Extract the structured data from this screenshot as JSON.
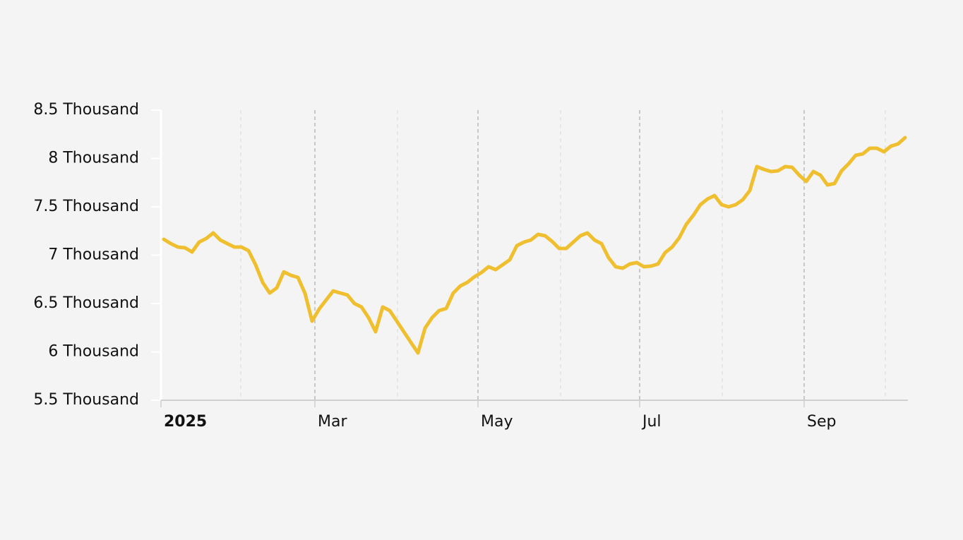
{
  "chart_data": {
    "type": "line",
    "values": [
      7164,
      7120,
      7084,
      7077,
      7033,
      7135,
      7172,
      7230,
      7157,
      7120,
      7084,
      7084,
      7047,
      6901,
      6719,
      6609,
      6661,
      6828,
      6792,
      6770,
      6606,
      6318,
      6442,
      6537,
      6631,
      6609,
      6588,
      6500,
      6464,
      6354,
      6208,
      6464,
      6427,
      6318,
      6208,
      6098,
      5989,
      6245,
      6354,
      6427,
      6449,
      6609,
      6682,
      6719,
      6777,
      6821,
      6880,
      6850,
      6901,
      6952,
      7098,
      7135,
      7157,
      7215,
      7201,
      7142,
      7069,
      7069,
      7135,
      7201,
      7230,
      7157,
      7120,
      6974,
      6880,
      6865,
      6909,
      6923,
      6880,
      6887,
      6909,
      7026,
      7084,
      7179,
      7318,
      7412,
      7522,
      7580,
      7617,
      7522,
      7500,
      7522,
      7573,
      7668,
      7916,
      7887,
      7865,
      7872,
      7916,
      7909,
      7828,
      7763,
      7865,
      7828,
      7726,
      7741,
      7872,
      7945,
      8033,
      8047,
      8106,
      8106,
      8069,
      8128,
      8150,
      8215
    ],
    "color": "#efbf2f",
    "xlim": [
      -0.4,
      105.4
    ],
    "xticks": [
      {
        "value": -0.4,
        "label": "2025"
      },
      {
        "value": 21.4,
        "label": "Mar"
      },
      {
        "value": 44.5,
        "label": "May"
      },
      {
        "value": 67.4,
        "label": "Jul"
      },
      {
        "value": 90.7,
        "label": "Sep"
      }
    ],
    "minor_xticks": [
      10.9,
      33.1,
      56.2,
      79.1,
      102.2
    ],
    "ylim": [
      5500,
      8500
    ],
    "yticks": [
      {
        "value": 5500,
        "label": "5.5 Thousand"
      },
      {
        "value": 6000,
        "label": "6 Thousand"
      },
      {
        "value": 6500,
        "label": "6.5 Thousand"
      },
      {
        "value": 7000,
        "label": "7 Thousand"
      },
      {
        "value": 7500,
        "label": "7.5 Thousand"
      },
      {
        "value": 8000,
        "label": "8 Thousand"
      },
      {
        "value": 8500,
        "label": "8.5 Thousand"
      }
    ],
    "grid": true
  }
}
